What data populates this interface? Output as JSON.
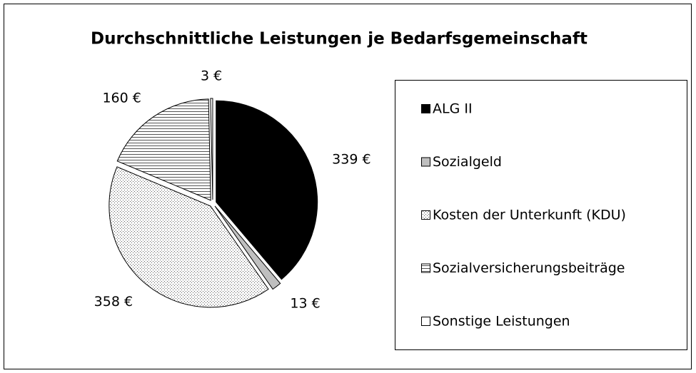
{
  "chart_data": {
    "type": "pie",
    "title": "Durchschnittliche Leistungen je Bedarfsgemeinschaft",
    "categories": [
      "ALG II",
      "Sozialgeld",
      "Kosten der Unterkunft (KDU)",
      "Sozialversicherungsbeiträge",
      "Sonstige Leistungen"
    ],
    "values": [
      339,
      13,
      358,
      160,
      3
    ],
    "value_labels": [
      "339 €",
      "13 €",
      "358 €",
      "160 €",
      "3 €"
    ],
    "colors": [
      "#000000",
      "#bfbfbf",
      "#ffffff",
      "#ffffff",
      "#ffffff"
    ],
    "patterns": [
      "solid",
      "solid",
      "dots",
      "hlines",
      "solid"
    ],
    "legend": "right"
  }
}
